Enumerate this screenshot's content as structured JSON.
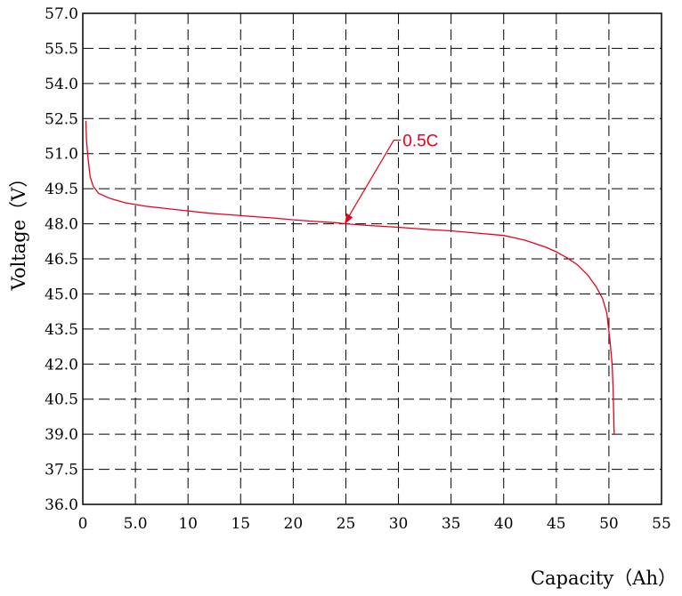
{
  "chart_data": {
    "type": "line",
    "title": "",
    "xlabel": "Capacity（Ah）",
    "ylabel": "Voltage（V）",
    "xlim": [
      0,
      55
    ],
    "ylim": [
      36.0,
      57.0
    ],
    "xticks": [
      "0",
      "5.0",
      "10",
      "15",
      "20",
      "25",
      "30",
      "35",
      "40",
      "45",
      "50",
      "55"
    ],
    "xtick_values": [
      0,
      5,
      10,
      15,
      20,
      25,
      30,
      35,
      40,
      45,
      50,
      55
    ],
    "yticks": [
      "36.0",
      "37.5",
      "39.0",
      "40.5",
      "42.0",
      "43.5",
      "45.0",
      "46.5",
      "48.0",
      "49.5",
      "51.0",
      "52.5",
      "54.0",
      "55.5",
      "57.0"
    ],
    "ytick_values": [
      36.0,
      37.5,
      39.0,
      40.5,
      42.0,
      43.5,
      45.0,
      46.5,
      48.0,
      49.5,
      51.0,
      52.5,
      54.0,
      55.5,
      57.0
    ],
    "grid": true,
    "series": [
      {
        "name": "0.5C",
        "color": "#e8001c",
        "x": [
          0.3,
          0.35,
          0.5,
          0.7,
          1.0,
          1.5,
          2.5,
          4,
          6,
          8,
          10,
          12,
          15,
          18,
          20,
          22,
          24,
          25,
          27,
          30,
          33,
          35,
          38,
          40,
          41,
          42,
          43,
          44,
          45,
          46,
          47,
          48,
          48.8,
          49.4,
          49.8,
          50.1,
          50.3,
          50.4,
          50.45,
          50.5
        ],
        "y": [
          52.4,
          51.6,
          50.8,
          50.0,
          49.6,
          49.3,
          49.1,
          48.9,
          48.75,
          48.65,
          48.55,
          48.45,
          48.35,
          48.25,
          48.17,
          48.1,
          48.05,
          48.0,
          47.93,
          47.85,
          47.75,
          47.7,
          47.58,
          47.5,
          47.4,
          47.3,
          47.15,
          47.0,
          46.8,
          46.55,
          46.25,
          45.8,
          45.3,
          44.8,
          44.2,
          43.0,
          42.0,
          41.0,
          40.0,
          39.0
        ]
      }
    ],
    "annotations": [
      {
        "text": "0.5C",
        "point": [
          24.9,
          48.0
        ]
      }
    ]
  }
}
